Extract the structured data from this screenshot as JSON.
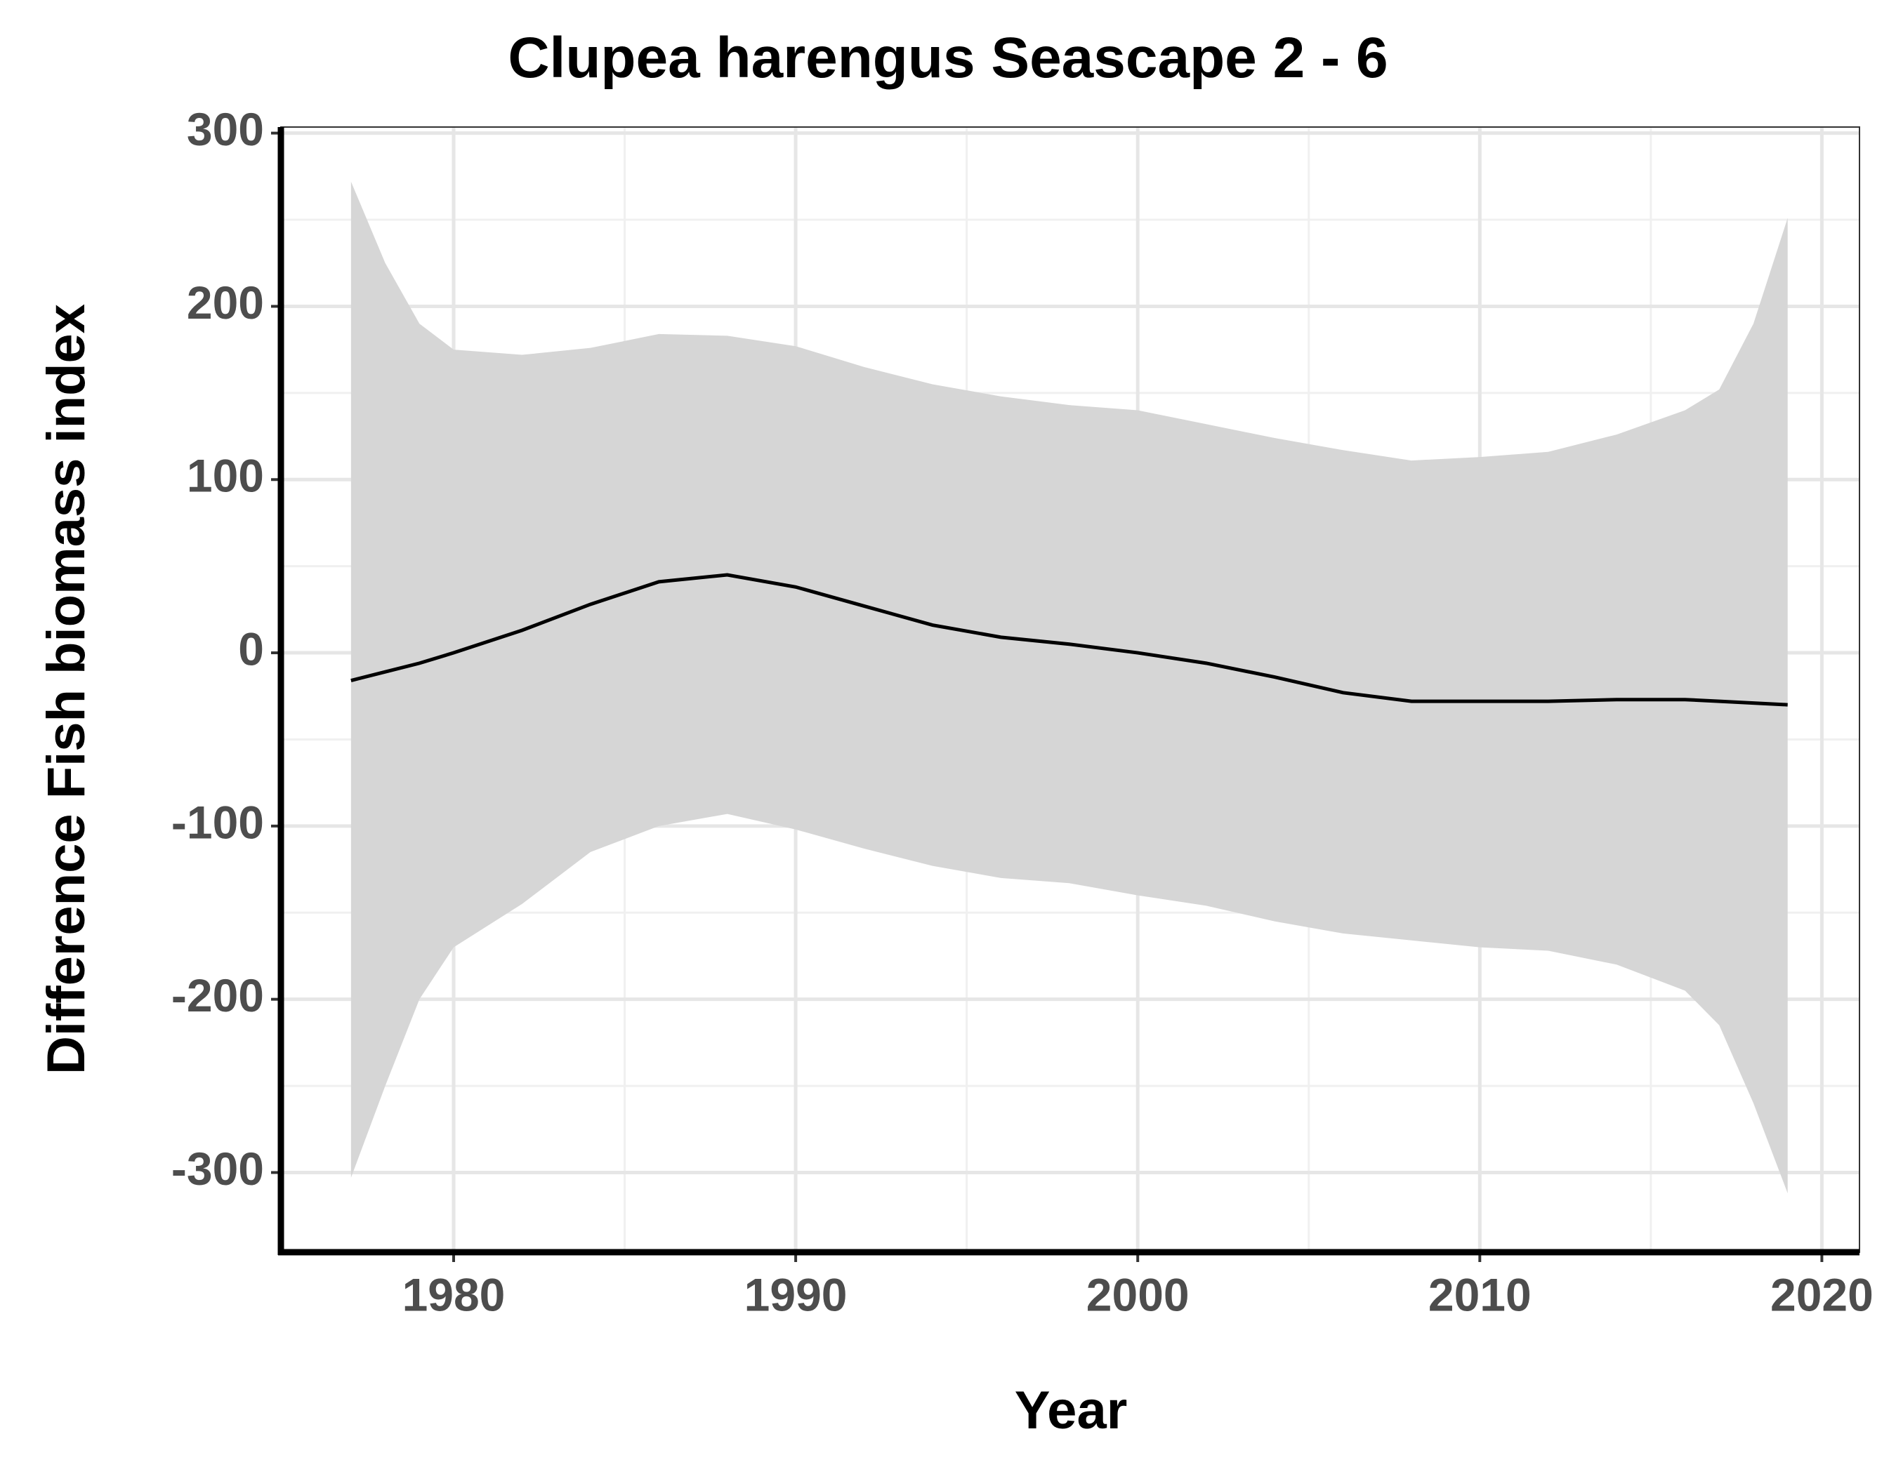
{
  "chart_data": {
    "type": "line",
    "title": "Clupea harengus Seascape 2 - 6",
    "x_label": "Year",
    "y_label": "Difference Fish biomass index",
    "x": [
      1977,
      1978,
      1979,
      1980,
      1982,
      1984,
      1986,
      1988,
      1990,
      1992,
      1994,
      1996,
      1998,
      2000,
      2002,
      2004,
      2006,
      2008,
      2010,
      2012,
      2014,
      2016,
      2017,
      2018,
      2019
    ],
    "values": [
      -16,
      -11,
      -6,
      0,
      13,
      28,
      41,
      45,
      38,
      27,
      16,
      9,
      5,
      0,
      -6,
      -14,
      -23,
      -28,
      -28,
      -28,
      -27,
      -27,
      -28,
      -29,
      -30
    ],
    "upper": [
      272,
      225,
      190,
      175,
      172,
      176,
      184,
      183,
      177,
      165,
      155,
      148,
      143,
      140,
      132,
      124,
      117,
      111,
      113,
      116,
      126,
      140,
      152,
      190,
      251
    ],
    "lower": [
      -303,
      -250,
      -200,
      -170,
      -145,
      -115,
      -100,
      -93,
      -102,
      -113,
      -123,
      -130,
      -133,
      -140,
      -146,
      -155,
      -162,
      -166,
      -170,
      -172,
      -180,
      -195,
      -215,
      -260,
      -312
    ],
    "color": "#000000",
    "band_color": "#d6d6d6",
    "xlim": [
      1974.95,
      2021.1
    ],
    "ylim": [
      -346,
      303.5
    ],
    "xticks": [
      1980,
      1990,
      2000,
      2010,
      2020
    ],
    "yticks": [
      -300,
      -200,
      -100,
      0,
      100,
      200,
      300
    ],
    "grid": true
  }
}
